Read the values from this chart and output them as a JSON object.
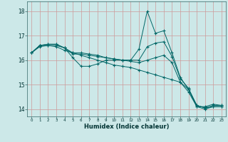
{
  "xlabel": "Humidex (Indice chaleur)",
  "xlim": [
    -0.5,
    23.5
  ],
  "ylim": [
    13.7,
    18.4
  ],
  "yticks": [
    14,
    15,
    16,
    17,
    18
  ],
  "xticks": [
    0,
    1,
    2,
    3,
    4,
    5,
    6,
    7,
    8,
    9,
    10,
    11,
    12,
    13,
    14,
    15,
    16,
    17,
    18,
    19,
    20,
    21,
    22,
    23
  ],
  "bg_color": "#cce8e8",
  "line_color": "#006666",
  "grid_color": "#cc9999",
  "series": [
    [
      16.3,
      16.6,
      16.65,
      16.65,
      16.5,
      16.1,
      15.75,
      15.75,
      15.85,
      16.0,
      16.0,
      16.0,
      16.0,
      16.45,
      18.0,
      17.1,
      17.2,
      16.3,
      15.3,
      14.8,
      14.1,
      14.1,
      14.2,
      14.15
    ],
    [
      16.3,
      16.6,
      16.65,
      16.65,
      16.5,
      16.25,
      16.25,
      16.2,
      16.15,
      16.1,
      16.05,
      16.0,
      16.0,
      16.0,
      16.55,
      16.7,
      16.75,
      16.15,
      15.25,
      14.85,
      14.15,
      14.05,
      14.15,
      14.15
    ],
    [
      16.3,
      16.55,
      16.6,
      16.6,
      16.5,
      16.3,
      16.3,
      16.25,
      16.2,
      16.1,
      16.05,
      16.0,
      15.95,
      15.9,
      16.0,
      16.1,
      16.2,
      15.9,
      15.1,
      14.7,
      14.1,
      14.0,
      14.1,
      14.1
    ],
    [
      16.3,
      16.6,
      16.6,
      16.55,
      16.4,
      16.3,
      16.2,
      16.1,
      16.0,
      15.9,
      15.8,
      15.75,
      15.7,
      15.6,
      15.5,
      15.4,
      15.3,
      15.2,
      15.1,
      14.8,
      14.15,
      14.05,
      14.1,
      14.1
    ]
  ]
}
